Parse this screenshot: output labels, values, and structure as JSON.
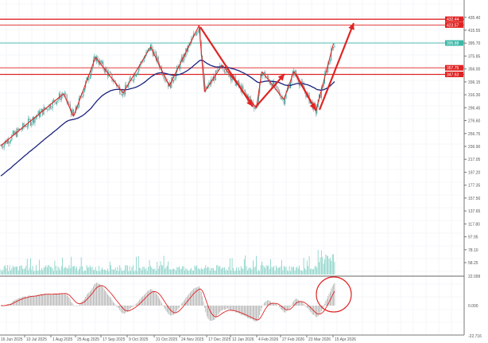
{
  "chart_data": {
    "type": "candlestick",
    "price_axis": {
      "ylim": [
        58.25,
        435.4
      ],
      "ticks": [
        "435.40",
        "415.55",
        "395.70",
        "375.85",
        "356.00",
        "336.15",
        "316.30",
        "296.45",
        "276.60",
        "256.75",
        "236.90",
        "217.05",
        "197.20",
        "177.35",
        "157.50",
        "137.65",
        "117.80",
        "97.95",
        "78.10",
        "58.25"
      ]
    },
    "oscillator_axis": {
      "ticks": [
        "22.099",
        "0.000",
        "-22.716"
      ],
      "ylim": [
        -22.716,
        22.099
      ]
    },
    "date_ticks": [
      "16 Jun 2025",
      "10 Jul 2025",
      "1 Aug 2025",
      "25 Aug 2025",
      "17 Sep 2025",
      "9 Oct 2025",
      "31 Oct 2025",
      "24 Nov 2025",
      "17 Dec 2025",
      "12 Jan 2026",
      "4 Feb 2026",
      "27 Feb 2026",
      "23 Mar 2026",
      "15 Apr 2026"
    ],
    "level_lines": [
      {
        "price": 432.44,
        "label": "432.44",
        "color": "#e02424"
      },
      {
        "price": 423.57,
        "label": "423.57",
        "color": "#e02424"
      },
      {
        "price": 395.88,
        "label": "395.88",
        "color": "#3cb8a8"
      },
      {
        "price": 357.75,
        "label": "357.75",
        "color": "#e02424"
      },
      {
        "price": 347.63,
        "label": "347.63",
        "color": "#e02424"
      }
    ],
    "zigzag_pivots": [
      {
        "date": "2025-06-16",
        "price": 238
      },
      {
        "date": "2025-08-12",
        "price": 318
      },
      {
        "date": "2025-08-21",
        "price": 283
      },
      {
        "date": "2025-09-10",
        "price": 374
      },
      {
        "date": "2025-10-05",
        "price": 319
      },
      {
        "date": "2025-10-30",
        "price": 390
      },
      {
        "date": "2025-11-16",
        "price": 330
      },
      {
        "date": "2025-12-13",
        "price": 423
      },
      {
        "date": "2025-12-18",
        "price": 321
      },
      {
        "date": "2026-01-03",
        "price": 362
      },
      {
        "date": "2026-02-03",
        "price": 296
      },
      {
        "date": "2026-02-08",
        "price": 352
      },
      {
        "date": "2026-02-28",
        "price": 309
      },
      {
        "date": "2026-03-09",
        "price": 352
      },
      {
        "date": "2026-03-29",
        "price": 291
      },
      {
        "date": "2026-04-14",
        "price": 395
      }
    ],
    "grid": true,
    "colors": {
      "bull": "#26a69a",
      "bear": "#888888",
      "moving_average": "#1a237e",
      "zigzag": "#e02424",
      "signal": "#e02424",
      "histogram": "#b0b0b0"
    }
  }
}
